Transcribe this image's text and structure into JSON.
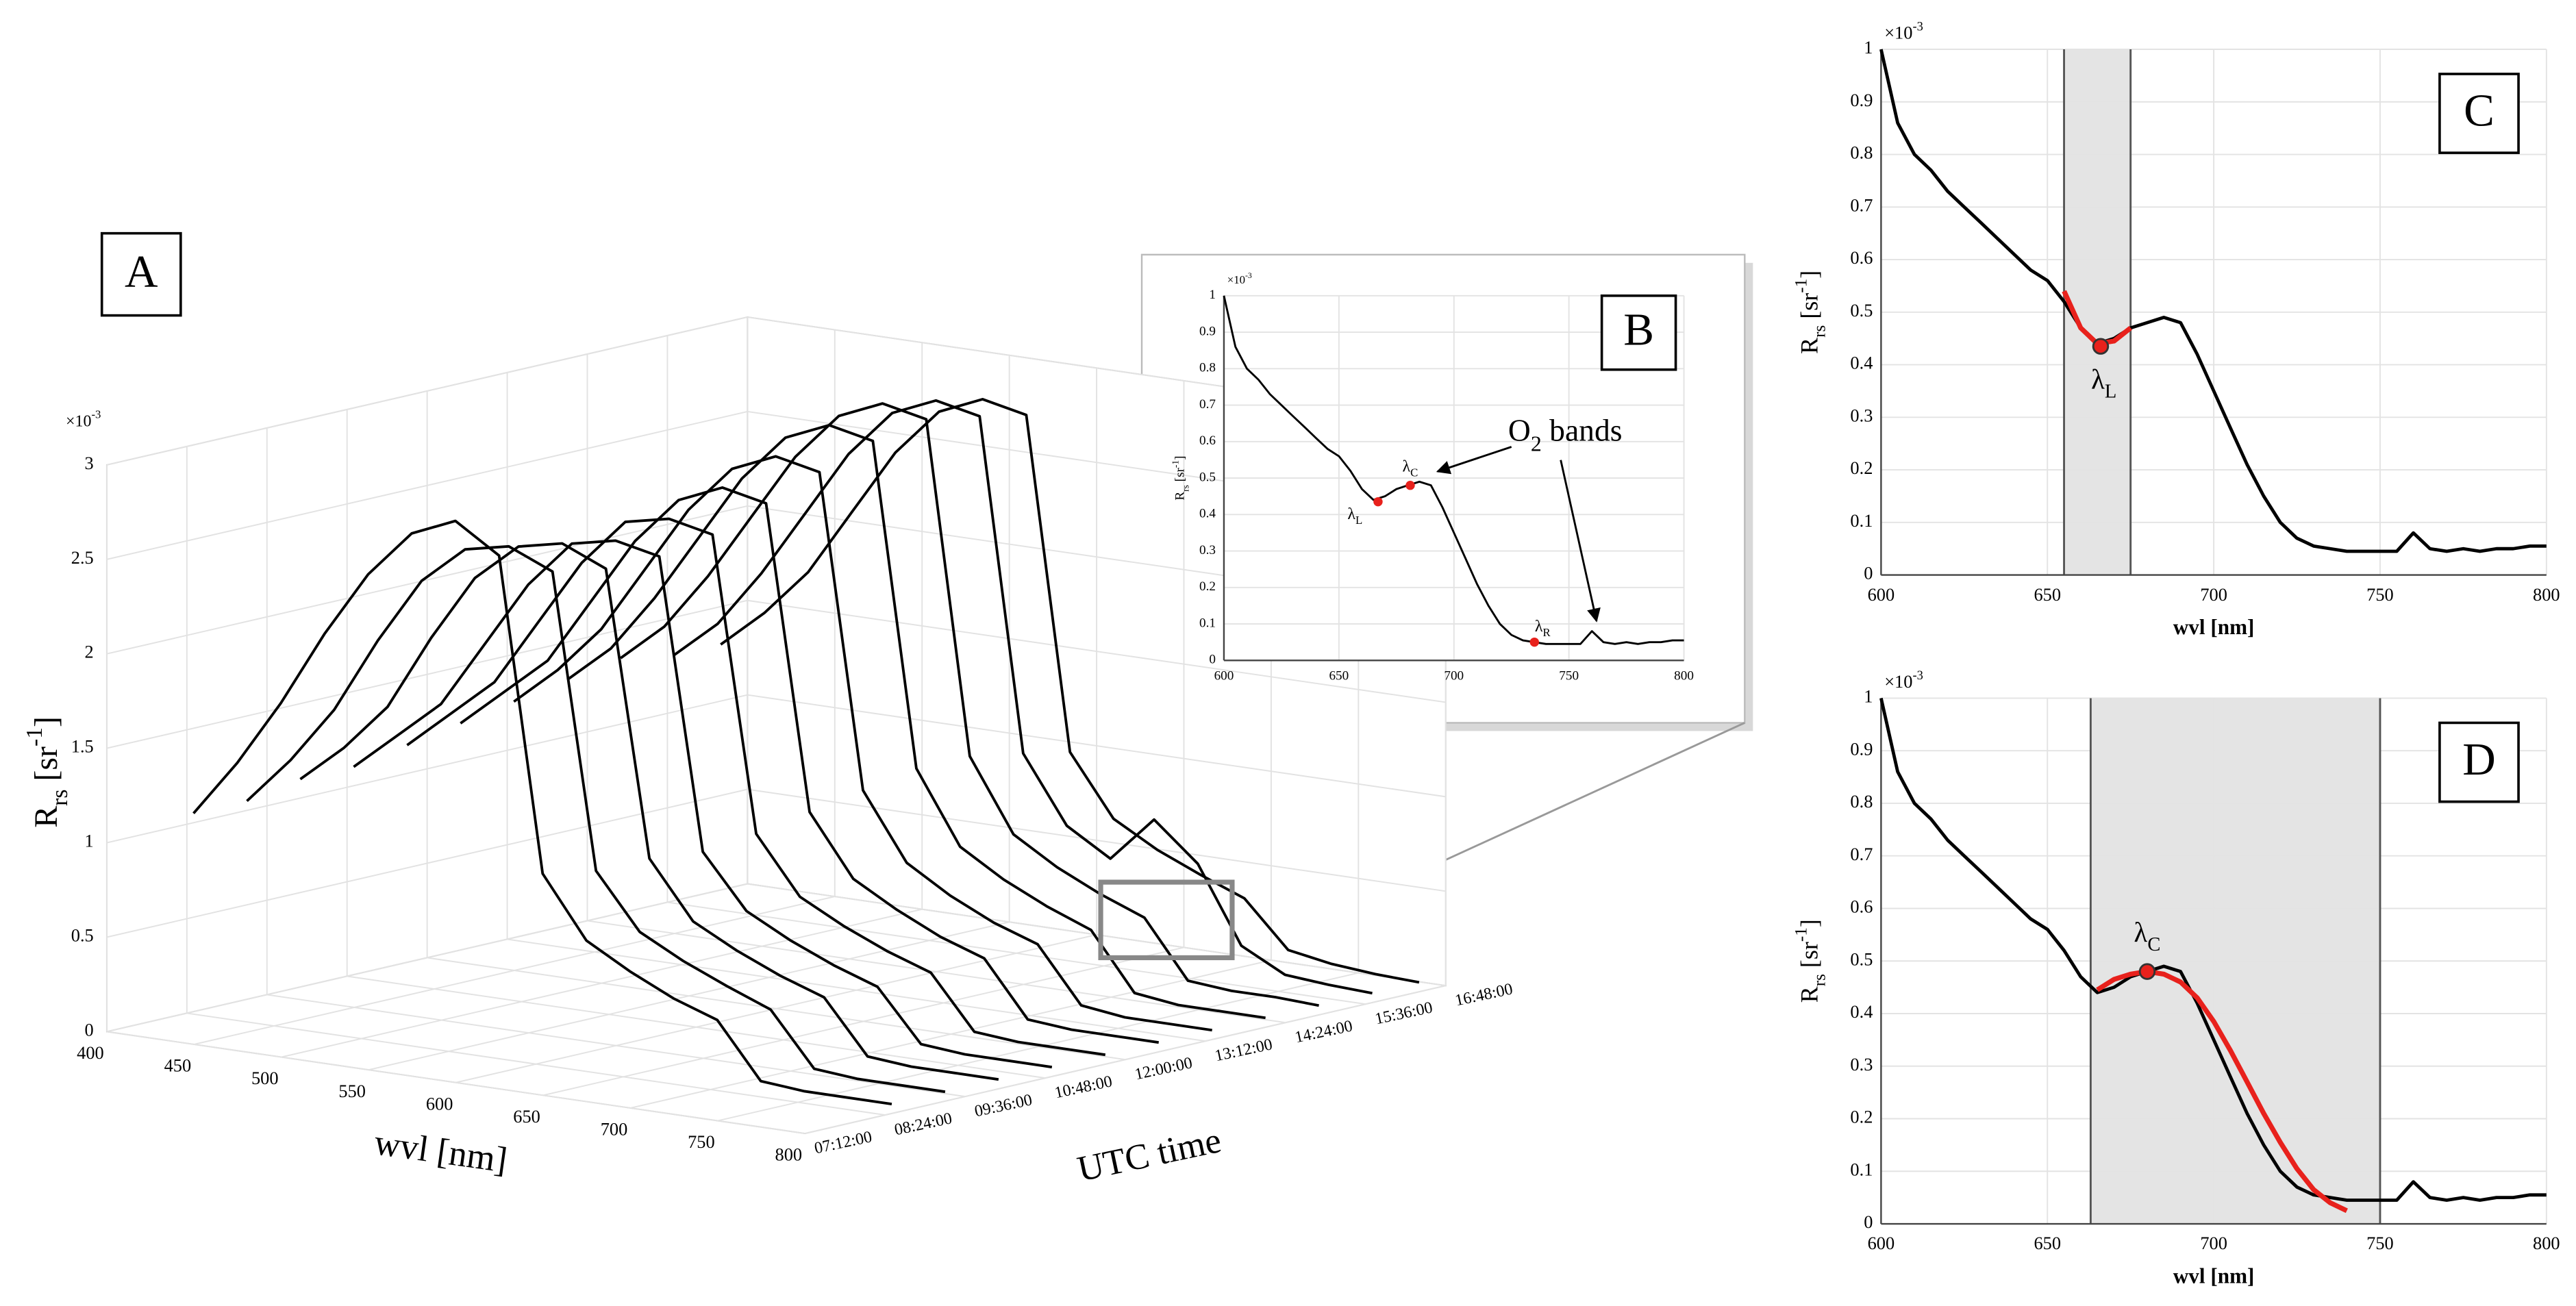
{
  "chart_data": [
    {
      "type": "waterfall3d",
      "label": "A",
      "xlabel": "wvl [nm]",
      "tlabel": "UTC time",
      "ylabel": [
        "R",
        "rs",
        " [sr",
        "-1",
        "]"
      ],
      "exponent": [
        "×10",
        "-3"
      ],
      "x": [
        400,
        425,
        450,
        475,
        500,
        525,
        550,
        575,
        600,
        625,
        650,
        675,
        700,
        725,
        750,
        775,
        800
      ],
      "xlim": [
        400,
        800
      ],
      "xticks": [
        400,
        450,
        500,
        550,
        600,
        650,
        700,
        750,
        800
      ],
      "tlim": [
        7.2,
        16.8
      ],
      "tticks": [
        {
          "value": 7.2,
          "label": "07:12:00"
        },
        {
          "value": 8.4,
          "label": "08:24:00"
        },
        {
          "value": 9.6,
          "label": "09:36:00"
        },
        {
          "value": 10.8,
          "label": "10:48:00"
        },
        {
          "value": 12,
          "label": "12:00:00"
        },
        {
          "value": 13.2,
          "label": "13:12:00"
        },
        {
          "value": 14.4,
          "label": "14:24:00"
        },
        {
          "value": 15.6,
          "label": "15:36:00"
        },
        {
          "value": 16.8,
          "label": "16:48:00"
        }
      ],
      "ylim": [
        0,
        3
      ],
      "yticks": [
        0,
        0.5,
        1,
        1.5,
        2,
        2.5,
        3
      ],
      "grid": true,
      "series": [
        {
          "time": 8.5,
          "color": "#000000",
          "values": [
            1.05,
            1.35,
            1.7,
            2.1,
            2.45,
            2.7,
            2.8,
            2.65,
            1.0,
            0.68,
            0.55,
            0.44,
            0.36,
            0.07,
            0.05,
            0.05,
            0.05
          ]
        },
        {
          "time": 9.3,
          "color": "#000000",
          "values": [
            1.05,
            1.3,
            1.6,
            2.0,
            2.35,
            2.55,
            2.6,
            2.5,
            0.95,
            0.66,
            0.54,
            0.44,
            0.35,
            0.07,
            0.05,
            0.05,
            0.05
          ]
        },
        {
          "time": 10.1,
          "color": "#000000",
          "values": [
            1.1,
            1.3,
            1.55,
            1.95,
            2.3,
            2.5,
            2.55,
            2.45,
            0.95,
            0.65,
            0.53,
            0.43,
            0.35,
            0.07,
            0.05,
            0.05,
            0.05
          ]
        },
        {
          "time": 10.9,
          "color": "#000000",
          "values": [
            1.1,
            1.3,
            1.5,
            1.85,
            2.2,
            2.45,
            2.5,
            2.45,
            0.92,
            0.64,
            0.52,
            0.42,
            0.34,
            0.07,
            0.05,
            0.05,
            0.05
          ]
        },
        {
          "time": 11.7,
          "color": "#000000",
          "values": [
            1.15,
            1.35,
            1.55,
            1.9,
            2.25,
            2.5,
            2.55,
            2.5,
            0.95,
            0.65,
            0.53,
            0.43,
            0.35,
            0.07,
            0.05,
            0.05,
            0.05
          ]
        },
        {
          "time": 12.5,
          "color": "#000000",
          "values": [
            1.2,
            1.4,
            1.6,
            1.95,
            2.3,
            2.55,
            2.65,
            2.6,
            1.0,
            0.68,
            0.55,
            0.44,
            0.36,
            0.07,
            0.05,
            0.05,
            0.05
          ]
        },
        {
          "time": 13.3,
          "color": "#000000",
          "values": [
            1.25,
            1.45,
            1.7,
            2.05,
            2.4,
            2.65,
            2.75,
            2.7,
            1.05,
            0.7,
            0.56,
            0.45,
            0.37,
            0.08,
            0.05,
            0.05,
            0.05
          ]
        },
        {
          "time": 14.1,
          "color": "#000000",
          "values": [
            1.3,
            1.5,
            1.8,
            2.15,
            2.5,
            2.75,
            2.85,
            2.8,
            1.1,
            0.72,
            0.58,
            0.47,
            0.38,
            0.08,
            0.05,
            0.05,
            0.05
          ]
        },
        {
          "time": 14.9,
          "color": "#000000",
          "values": [
            1.35,
            1.55,
            1.85,
            2.2,
            2.55,
            2.8,
            2.9,
            2.85,
            1.1,
            0.72,
            0.58,
            0.47,
            0.38,
            0.08,
            0.06,
            0.06,
            0.05
          ]
        },
        {
          "time": 15.7,
          "color": "#000000",
          "values": [
            1.3,
            1.5,
            1.8,
            2.15,
            2.5,
            2.75,
            2.85,
            2.8,
            1.05,
            0.7,
            0.56,
            0.8,
            0.6,
            0.2,
            0.08,
            0.06,
            0.05
          ]
        },
        {
          "time": 16.4,
          "color": "#000000",
          "values": [
            1.3,
            1.5,
            1.75,
            2.1,
            2.45,
            2.7,
            2.8,
            2.75,
            1.0,
            0.68,
            0.55,
            0.45,
            0.36,
            0.12,
            0.08,
            0.06,
            0.05
          ]
        }
      ]
    },
    {
      "type": "line",
      "label": "B",
      "ylabel": [
        "R",
        "rs",
        " [sr",
        "-1",
        "]"
      ],
      "exponent": [
        "×10",
        "-3"
      ],
      "x": [
        600,
        605,
        610,
        615,
        620,
        625,
        630,
        635,
        640,
        645,
        650,
        655,
        660,
        665,
        670,
        675,
        680,
        685,
        690,
        695,
        700,
        705,
        710,
        715,
        720,
        725,
        730,
        735,
        740,
        745,
        750,
        755,
        760,
        765,
        770,
        775,
        780,
        785,
        790,
        795,
        800
      ],
      "xlim": [
        600,
        800
      ],
      "xticks": [
        600,
        650,
        700,
        750,
        800
      ],
      "ylim": [
        0,
        1
      ],
      "yticks": [
        0,
        0.1,
        0.2,
        0.3,
        0.4,
        0.5,
        0.6,
        0.7,
        0.8,
        0.9,
        1
      ],
      "grid": true,
      "series": [
        {
          "color": "#000000",
          "values": [
            1.0,
            0.86,
            0.8,
            0.77,
            0.73,
            0.7,
            0.67,
            0.64,
            0.61,
            0.58,
            0.56,
            0.52,
            0.47,
            0.44,
            0.45,
            0.47,
            0.48,
            0.49,
            0.48,
            0.42,
            0.35,
            0.28,
            0.21,
            0.15,
            0.1,
            0.07,
            0.055,
            0.05,
            0.045,
            0.045,
            0.045,
            0.045,
            0.08,
            0.05,
            0.045,
            0.05,
            0.045,
            0.05,
            0.05,
            0.055,
            0.055
          ]
        }
      ],
      "markers": [
        {
          "x": 667,
          "y": 0.435,
          "color": "#e8211c",
          "label": [
            "λ",
            "L"
          ]
        },
        {
          "x": 681,
          "y": 0.48,
          "color": "#e8211c",
          "label": [
            "λ",
            "C"
          ]
        },
        {
          "x": 735,
          "y": 0.05,
          "color": "#e8211c",
          "label": [
            "λ",
            "R"
          ]
        }
      ],
      "annotation": {
        "text": [
          "O",
          "2",
          " bands"
        ],
        "targets": [
          [
            690,
            0.5
          ],
          [
            762,
            0.09
          ]
        ]
      }
    },
    {
      "type": "line",
      "label": "C",
      "xlabel": "wvl [nm]",
      "ylabel": [
        "R",
        "rs",
        " [sr",
        "-1",
        "]"
      ],
      "exponent": [
        "×10",
        "-3"
      ],
      "x": [
        600,
        605,
        610,
        615,
        620,
        625,
        630,
        635,
        640,
        645,
        650,
        655,
        660,
        665,
        670,
        675,
        680,
        685,
        690,
        695,
        700,
        705,
        710,
        715,
        720,
        725,
        730,
        735,
        740,
        745,
        750,
        755,
        760,
        765,
        770,
        775,
        780,
        785,
        790,
        795,
        800
      ],
      "xlim": [
        600,
        800
      ],
      "xticks": [
        600,
        650,
        700,
        750,
        800
      ],
      "ylim": [
        0,
        1
      ],
      "yticks": [
        0,
        0.1,
        0.2,
        0.3,
        0.4,
        0.5,
        0.6,
        0.7,
        0.8,
        0.9,
        1
      ],
      "grid": true,
      "band": [
        655,
        675
      ],
      "series": [
        {
          "color": "#000000",
          "values": [
            1.0,
            0.86,
            0.8,
            0.77,
            0.73,
            0.7,
            0.67,
            0.64,
            0.61,
            0.58,
            0.56,
            0.52,
            0.47,
            0.44,
            0.45,
            0.47,
            0.48,
            0.49,
            0.48,
            0.42,
            0.35,
            0.28,
            0.21,
            0.15,
            0.1,
            0.07,
            0.055,
            0.05,
            0.045,
            0.045,
            0.045,
            0.045,
            0.08,
            0.05,
            0.045,
            0.05,
            0.045,
            0.05,
            0.05,
            0.055,
            0.055
          ]
        },
        {
          "color": "#e8211c",
          "x": [
            655,
            660,
            665,
            670,
            675
          ],
          "values": [
            0.54,
            0.47,
            0.44,
            0.445,
            0.47
          ]
        }
      ],
      "markers": [
        {
          "x": 666,
          "y": 0.435,
          "color": "#e8211c",
          "label": [
            "λ",
            "L"
          ]
        }
      ]
    },
    {
      "type": "line",
      "label": "D",
      "xlabel": "wvl [nm]",
      "ylabel": [
        "R",
        "rs",
        " [sr",
        "-1",
        "]"
      ],
      "exponent": [
        "×10",
        "-3"
      ],
      "x": [
        600,
        605,
        610,
        615,
        620,
        625,
        630,
        635,
        640,
        645,
        650,
        655,
        660,
        665,
        670,
        675,
        680,
        685,
        690,
        695,
        700,
        705,
        710,
        715,
        720,
        725,
        730,
        735,
        740,
        745,
        750,
        755,
        760,
        765,
        770,
        775,
        780,
        785,
        790,
        795,
        800
      ],
      "xlim": [
        600,
        800
      ],
      "xticks": [
        600,
        650,
        700,
        750,
        800
      ],
      "ylim": [
        0,
        1
      ],
      "yticks": [
        0,
        0.1,
        0.2,
        0.3,
        0.4,
        0.5,
        0.6,
        0.7,
        0.8,
        0.9,
        1
      ],
      "grid": true,
      "band": [
        663,
        750
      ],
      "series": [
        {
          "color": "#000000",
          "values": [
            1.0,
            0.86,
            0.8,
            0.77,
            0.73,
            0.7,
            0.67,
            0.64,
            0.61,
            0.58,
            0.56,
            0.52,
            0.47,
            0.44,
            0.45,
            0.47,
            0.48,
            0.49,
            0.48,
            0.42,
            0.35,
            0.28,
            0.21,
            0.15,
            0.1,
            0.07,
            0.055,
            0.05,
            0.045,
            0.045,
            0.045,
            0.045,
            0.08,
            0.05,
            0.045,
            0.05,
            0.045,
            0.05,
            0.05,
            0.055,
            0.055
          ]
        },
        {
          "color": "#e8211c",
          "x": [
            665,
            670,
            675,
            680,
            685,
            690,
            695,
            700,
            705,
            710,
            715,
            720,
            725,
            730,
            735,
            740
          ],
          "values": [
            0.445,
            0.465,
            0.475,
            0.48,
            0.475,
            0.46,
            0.43,
            0.385,
            0.33,
            0.27,
            0.21,
            0.155,
            0.105,
            0.065,
            0.04,
            0.025
          ]
        }
      ],
      "markers": [
        {
          "x": 680,
          "y": 0.48,
          "color": "#e8211c",
          "label": [
            "λ",
            "C"
          ]
        }
      ]
    }
  ]
}
